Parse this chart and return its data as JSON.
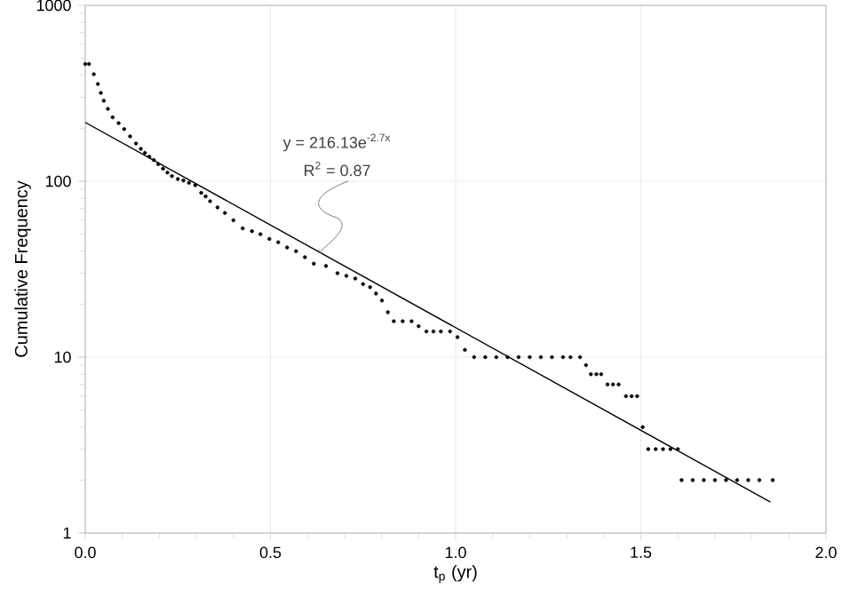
{
  "chart_data": {
    "type": "scatter",
    "xlabel": "t$_{p}$ (yr)",
    "ylabel": "Cumulative Frequency",
    "log": "y",
    "grid": true,
    "xlim": [
      0,
      2
    ],
    "ylim": [
      1,
      1000
    ],
    "xticks": [
      {
        "value": 0,
        "label": "0.0"
      },
      {
        "value": 0.5,
        "label": "0.5"
      },
      {
        "value": 1,
        "label": "1.0"
      },
      {
        "value": 1.5,
        "label": "1.5"
      },
      {
        "value": 2,
        "label": "2.0"
      }
    ],
    "yticks": [
      1,
      10,
      100,
      1000
    ],
    "annotations": [
      "y = 216.13e$^{-2.7x}$",
      {
        "text": "R$^{2}$ = 0.87",
        "x": 0.63,
        "y": 39
      }
    ],
    "series": [
      {
        "color": "#000000",
        "marker": "circle",
        "x": [
          0,
          0.01,
          0.023,
          0.034,
          0.042,
          0.05,
          0.061,
          0.074,
          0.09,
          0.105,
          0.121,
          0.137,
          0.15,
          0.161,
          0.173,
          0.185,
          0.197,
          0.21,
          0.222,
          0.234,
          0.25,
          0.265,
          0.28,
          0.297,
          0.313,
          0.325,
          0.337,
          0.357,
          0.377,
          0.4,
          0.425,
          0.45,
          0.473,
          0.497,
          0.521,
          0.545,
          0.569,
          0.593,
          0.617,
          0.65,
          0.681,
          0.705,
          0.729,
          0.75,
          0.769,
          0.785,
          0.801,
          0.817,
          0.833,
          0.857,
          0.881,
          0.9,
          0.921,
          0.94,
          0.96,
          0.985,
          1.005,
          1.025,
          1.05,
          1.08,
          1.11,
          1.14,
          1.17,
          1.2,
          1.23,
          1.26,
          1.29,
          1.31,
          1.336,
          1.352,
          1.365,
          1.38,
          1.393,
          1.41,
          1.425,
          1.44,
          1.46,
          1.475,
          1.49,
          1.505,
          1.52,
          1.54,
          1.56,
          1.58,
          1.6,
          1.61,
          1.64,
          1.67,
          1.7,
          1.73,
          1.76,
          1.79,
          1.82,
          1.856
        ],
        "values": [
          464,
          464,
          406,
          357,
          318,
          287,
          258,
          231,
          214,
          198,
          180,
          164,
          153,
          145,
          138,
          132,
          125,
          118,
          112,
          107,
          103,
          101,
          98,
          95,
          86,
          82,
          77,
          71,
          66,
          60,
          54,
          52,
          50,
          47,
          45,
          42,
          40,
          37,
          34,
          33,
          30,
          29,
          28,
          26,
          25,
          23,
          21,
          18,
          16,
          16,
          16,
          15,
          14,
          14,
          14,
          14,
          13,
          11,
          10,
          10,
          10,
          10,
          10,
          10,
          10,
          10,
          10,
          10,
          10,
          9,
          8,
          8,
          8,
          7,
          7,
          7,
          6,
          6,
          6,
          4,
          3,
          3,
          3,
          3,
          3,
          2,
          2,
          2,
          2,
          2,
          2,
          2,
          2,
          2
        ]
      },
      {
        "type": "line",
        "color": "#000000",
        "x": [
          0,
          1.85
        ],
        "values": [
          216,
          1.5
        ]
      }
    ]
  }
}
